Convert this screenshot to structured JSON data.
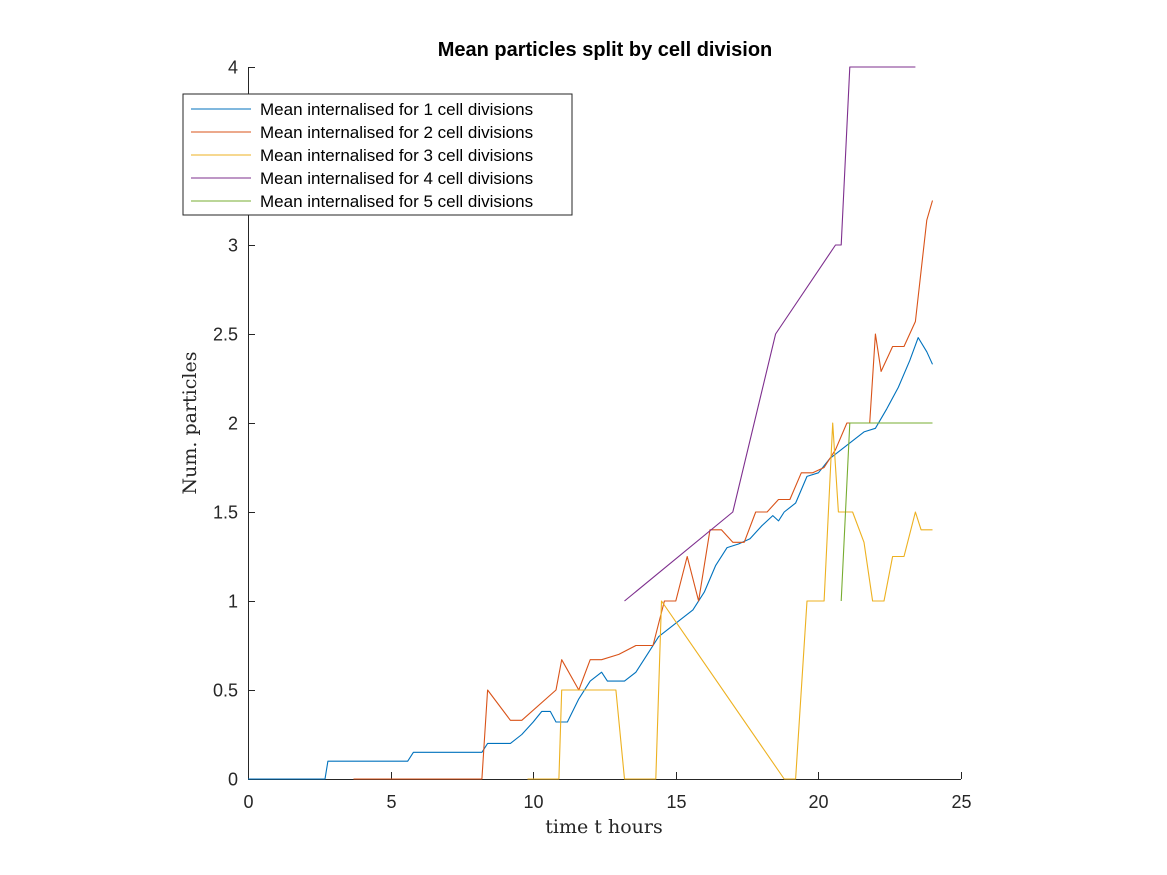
{
  "chart_data": {
    "type": "line",
    "title": "Mean particles split by cell division",
    "xlabel": "time t hours",
    "ylabel": "Num.  particles",
    "xlim": [
      0,
      25
    ],
    "ylim": [
      0,
      4
    ],
    "xticks": [
      0,
      5,
      10,
      15,
      20,
      25
    ],
    "yticks": [
      0,
      0.5,
      1,
      1.5,
      2,
      2.5,
      3,
      3.5,
      4
    ],
    "ytick_labels": [
      "0",
      "0.5",
      "1",
      "1.5",
      "2",
      "2.5",
      "3",
      "",
      "4"
    ],
    "grid": false,
    "legend_position": "top-left",
    "series": [
      {
        "name": "Mean internalised for 1 cell divisions",
        "color": "#0072BD",
        "step": true,
        "x": [
          0,
          2.7,
          2.8,
          5.6,
          5.8,
          8.2,
          8.4,
          9.2,
          9.6,
          10,
          10.3,
          10.6,
          10.8,
          11.2,
          11.6,
          12,
          12.4,
          12.6,
          13.2,
          13.6,
          14,
          14.4,
          14.8,
          15.2,
          15.6,
          16,
          16.4,
          16.8,
          17.2,
          17.6,
          18,
          18.4,
          18.6,
          18.8,
          19.2,
          19.6,
          20,
          20.4,
          20.8,
          21.2,
          21.6,
          22,
          22.4,
          22.8,
          23.2,
          23.5,
          23.8,
          24
        ],
        "y": [
          0,
          0,
          0.1,
          0.1,
          0.15,
          0.15,
          0.2,
          0.2,
          0.25,
          0.32,
          0.38,
          0.38,
          0.32,
          0.32,
          0.45,
          0.55,
          0.6,
          0.55,
          0.55,
          0.6,
          0.7,
          0.8,
          0.85,
          0.9,
          0.95,
          1.05,
          1.2,
          1.3,
          1.32,
          1.35,
          1.42,
          1.48,
          1.45,
          1.5,
          1.55,
          1.7,
          1.72,
          1.8,
          1.85,
          1.9,
          1.95,
          1.97,
          2.08,
          2.2,
          2.35,
          2.48,
          2.4,
          2.33
        ]
      },
      {
        "name": "Mean internalised for 2 cell divisions",
        "color": "#D95319",
        "step": true,
        "x": [
          3.7,
          8.2,
          8.4,
          9.2,
          9.6,
          10.8,
          11,
          11.6,
          12,
          12.4,
          13,
          13.6,
          14.2,
          14.6,
          15,
          15.4,
          15.8,
          16.2,
          16.6,
          17,
          17.4,
          17.8,
          18.2,
          18.6,
          19,
          19.4,
          19.8,
          20.2,
          20.6,
          21,
          21.4,
          21.8,
          22,
          22.2,
          22.6,
          23,
          23.4,
          23.8,
          24
        ],
        "y": [
          0,
          0,
          0.5,
          0.33,
          0.33,
          0.5,
          0.67,
          0.5,
          0.67,
          0.67,
          0.7,
          0.75,
          0.75,
          1,
          1,
          1.25,
          1,
          1.4,
          1.4,
          1.33,
          1.33,
          1.5,
          1.5,
          1.57,
          1.57,
          1.72,
          1.72,
          1.75,
          1.85,
          2,
          2,
          2,
          2.5,
          2.29,
          2.43,
          2.43,
          2.57,
          3.14,
          3.25
        ]
      },
      {
        "name": "Mean internalised for 3 cell divisions",
        "color": "#EDB120",
        "step": true,
        "x": [
          9.8,
          10.9,
          11,
          12.9,
          13.2,
          14.3,
          14.5,
          18.8,
          19.2,
          19.6,
          20.2,
          20.5,
          20.7,
          21.2,
          21.6,
          21.9,
          22.3,
          22.6,
          23,
          23.4,
          23.6,
          24
        ],
        "y": [
          0,
          0,
          0.5,
          0.5,
          0,
          0,
          1,
          0,
          0,
          1,
          1,
          2,
          1.5,
          1.5,
          1.33,
          1,
          1,
          1.25,
          1.25,
          1.5,
          1.4,
          1.4
        ]
      },
      {
        "name": "Mean internalised for 4 cell divisions",
        "color": "#7E2F8E",
        "step": true,
        "x": [
          13.2,
          17,
          18.5,
          20.6,
          20.8,
          21.1,
          23.4
        ],
        "y": [
          1,
          1.5,
          2.5,
          3,
          3,
          4,
          4
        ]
      },
      {
        "name": "Mean internalised for 5 cell divisions",
        "color": "#77AC30",
        "step": true,
        "x": [
          20.8,
          21.1,
          24
        ],
        "y": [
          1,
          2,
          2
        ]
      }
    ]
  }
}
